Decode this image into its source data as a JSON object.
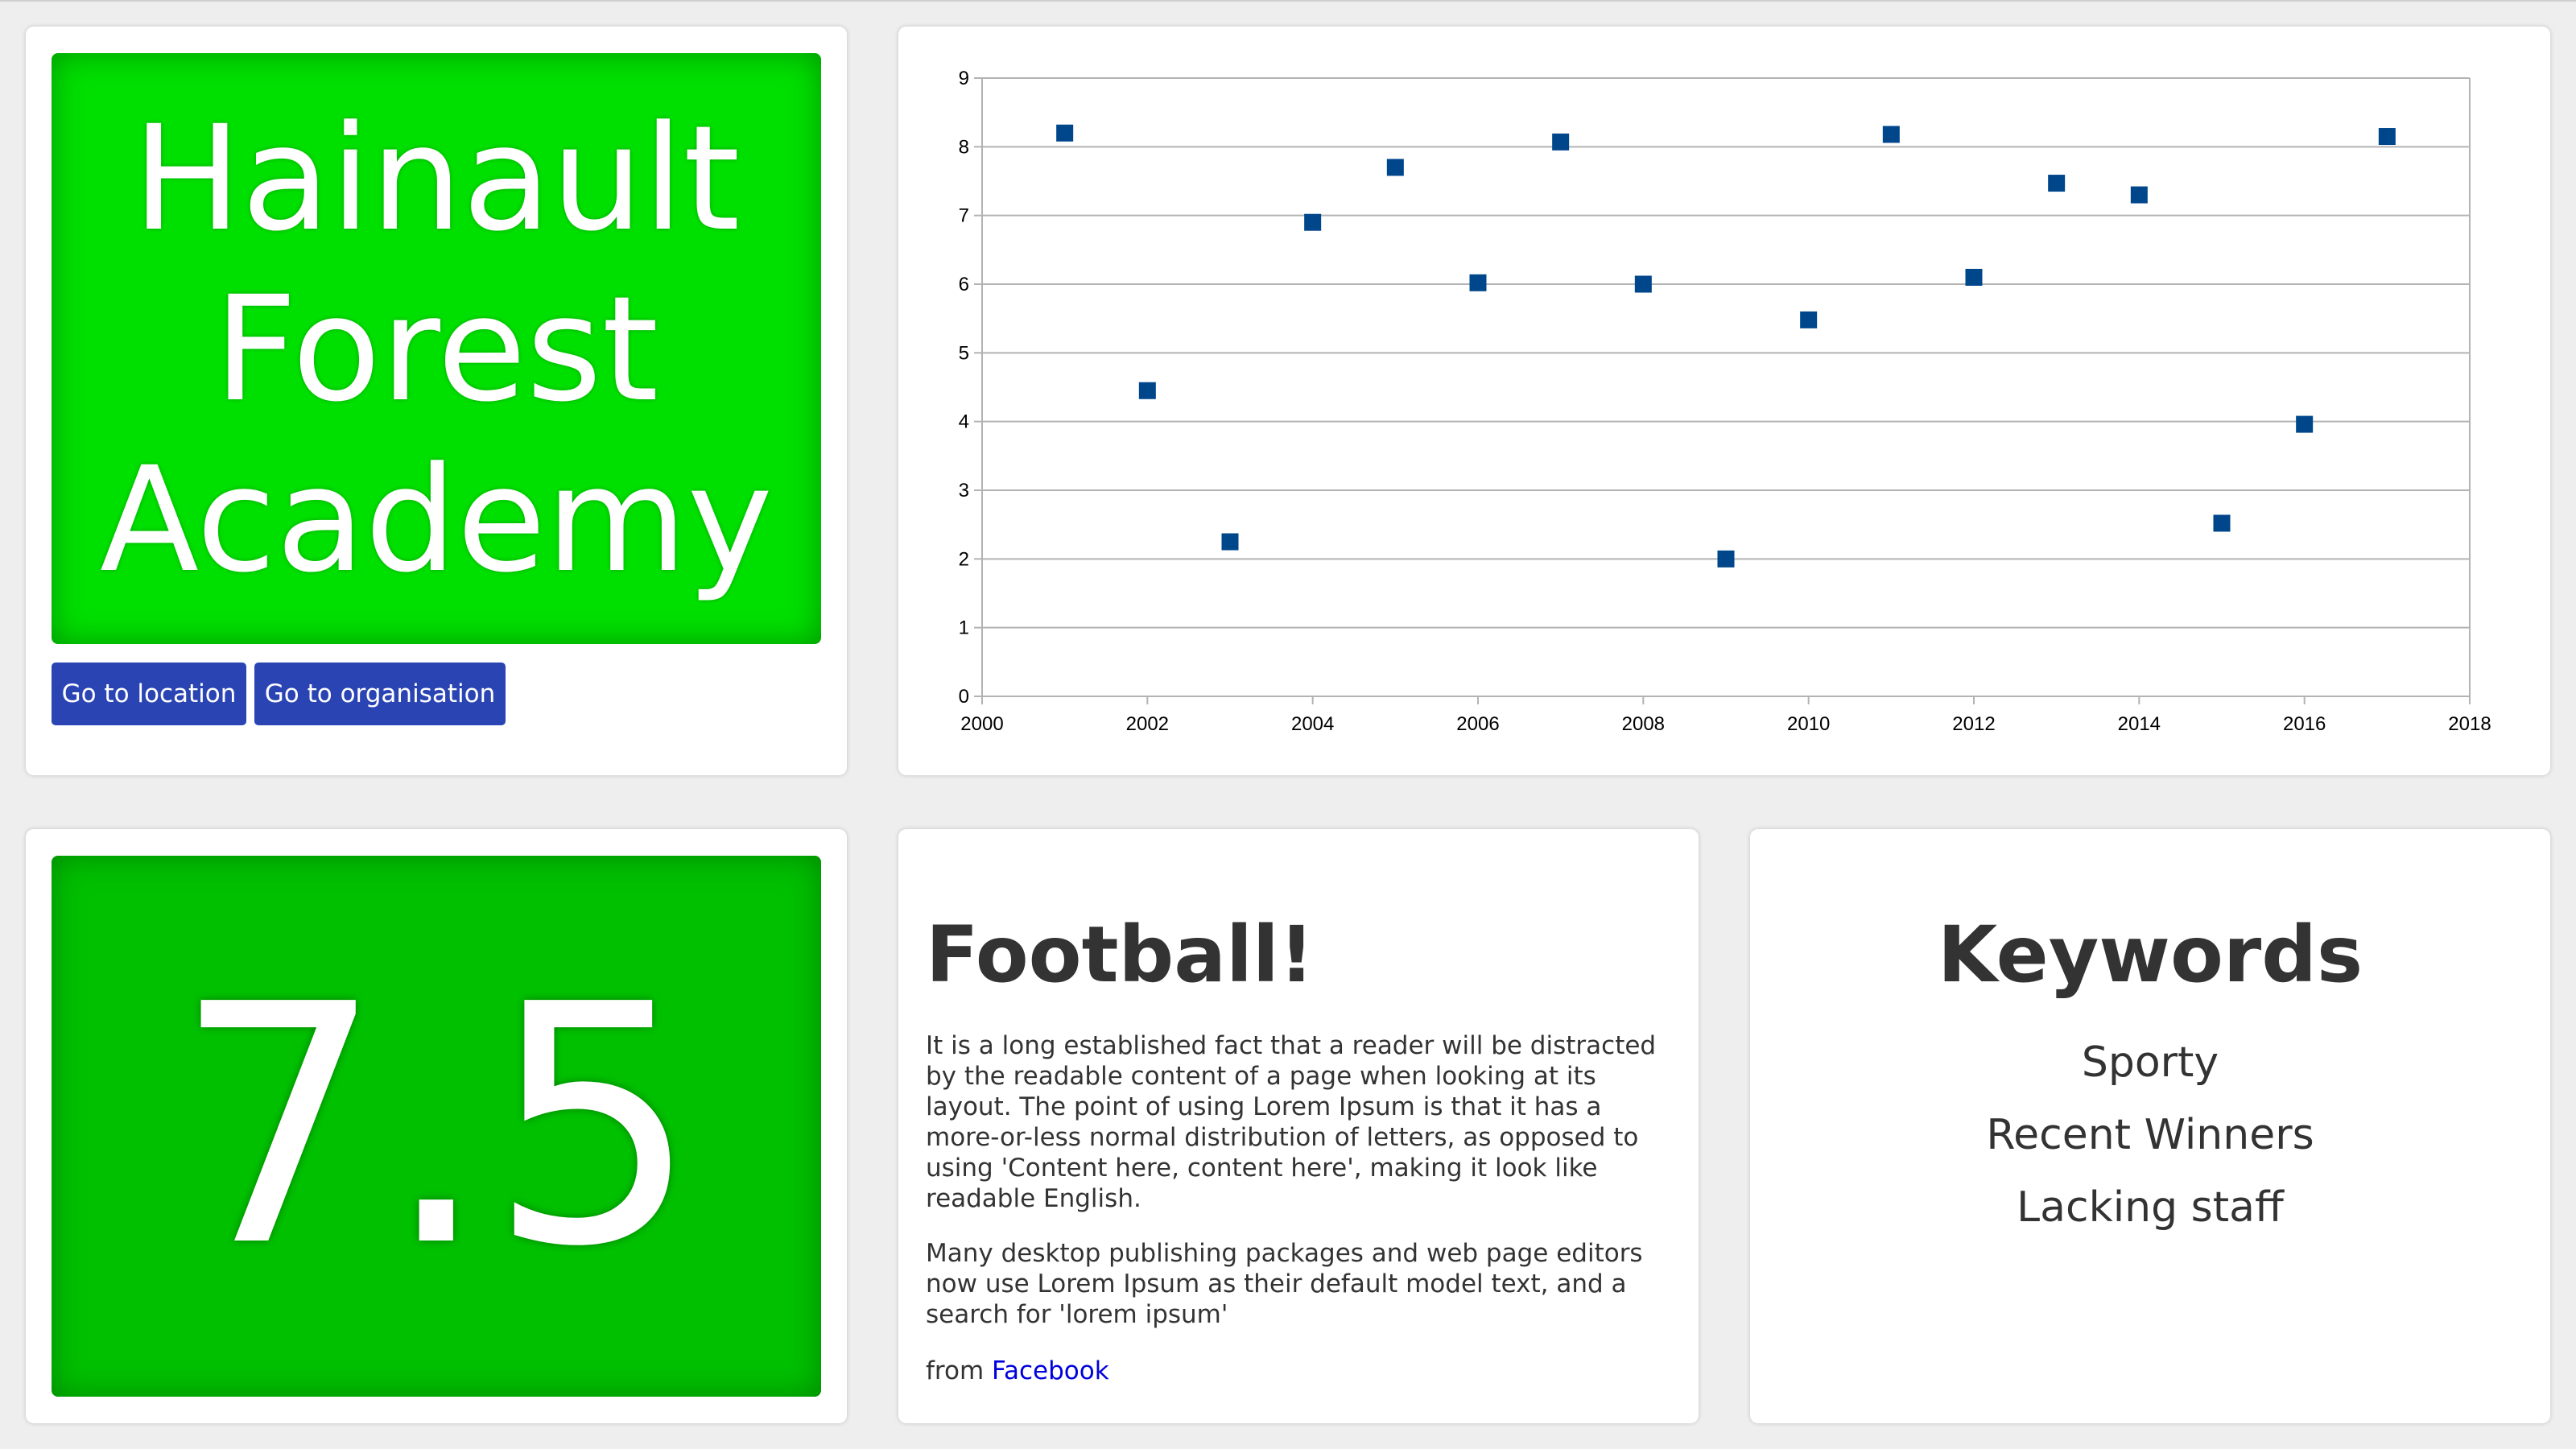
{
  "school": {
    "name": "Hainault Forest Academy",
    "score": "7.5",
    "colors": {
      "title_box": "#00e000",
      "score_box": "#00c000",
      "button": "#2a44b4"
    }
  },
  "buttons": {
    "location": "Go to location",
    "organisation": "Go to organisation"
  },
  "football": {
    "heading": "Football!",
    "paragraphs": [
      "It is a long established fact that a reader will be distracted by the readable content of a page when looking at its layout. The point of using Lorem Ipsum is that it has a more-or-less normal distribution of letters, as opposed to using 'Content here, content here', making it look like readable English.",
      "Many desktop publishing packages and web page editors now use Lorem Ipsum as their default model text, and a search for 'lorem ipsum'"
    ],
    "source_prefix": "from",
    "source_link": "Facebook"
  },
  "keywords": {
    "heading": "Keywords",
    "items": [
      "Sporty",
      "Recent Winners",
      "Lacking staff"
    ]
  },
  "chart_data": {
    "type": "scatter",
    "marker_color": "#00468b",
    "x": [
      2001,
      2002,
      2003,
      2004,
      2005,
      2006,
      2007,
      2008,
      2009,
      2010,
      2011,
      2012,
      2013,
      2014,
      2015,
      2016,
      2017
    ],
    "y": [
      8.2,
      4.45,
      2.25,
      6.9,
      7.7,
      6.02,
      8.07,
      6.0,
      2.0,
      5.48,
      8.18,
      6.1,
      7.47,
      7.3,
      2.52,
      3.96,
      8.15
    ],
    "xlim": [
      2000,
      2018
    ],
    "ylim": [
      0,
      9
    ],
    "xticks": [
      2000,
      2002,
      2004,
      2006,
      2008,
      2010,
      2012,
      2014,
      2016,
      2018
    ],
    "yticks": [
      0,
      1,
      2,
      3,
      4,
      5,
      6,
      7,
      8,
      9
    ],
    "grid": "horizontal",
    "title": "",
    "xlabel": "",
    "ylabel": ""
  }
}
